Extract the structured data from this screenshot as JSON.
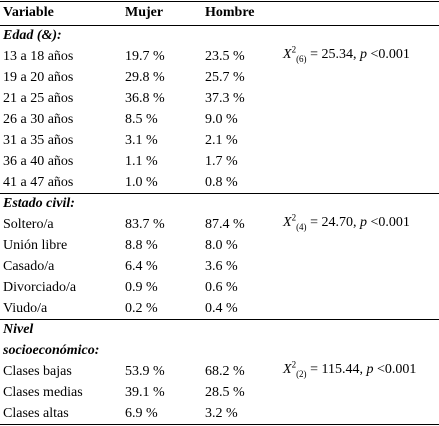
{
  "table": {
    "header": [
      "Variable",
      "Mujer",
      "Hombre"
    ],
    "sections": [
      {
        "title_lines": [
          "Edad (&):"
        ],
        "stat": {
          "symbol": "X",
          "sup": "2",
          "sub": "(6)",
          "value": "= 25.34,",
          "p": "p",
          "threshold": "<0.001"
        },
        "rows": [
          [
            "13 a 18 años",
            "19.7 %",
            "23.5 %"
          ],
          [
            "19 a 20 años",
            "29.8 %",
            "25.7 %"
          ],
          [
            "21 a 25 años",
            "36.8 %",
            "37.3 %"
          ],
          [
            "26 a 30 años",
            "8.5 %",
            "9.0 %"
          ],
          [
            "31 a 35 años",
            "3.1 %",
            "2.1 %"
          ],
          [
            "36 a 40 años",
            "1.1 %",
            "1.7 %"
          ],
          [
            "41 a 47 años",
            "1.0 %",
            "0.8 %"
          ]
        ]
      },
      {
        "title_lines": [
          "Estado civil:"
        ],
        "stat": {
          "symbol": "X",
          "sup": "2",
          "sub": "(4)",
          "value": "= 24.70,",
          "p": "p",
          "threshold": "<0.001"
        },
        "rows": [
          [
            "Soltero/a",
            "83.7 %",
            "87.4 %"
          ],
          [
            "Unión libre",
            "8.8 %",
            "8.0 %"
          ],
          [
            "Casado/a",
            "6.4 %",
            "3.6 %"
          ],
          [
            "Divorciado/a",
            "0.9 %",
            "0.6 %"
          ],
          [
            "Viudo/a",
            "0.2 %",
            "0.4 %"
          ]
        ]
      },
      {
        "title_lines": [
          "Nivel",
          "socioeconómico:"
        ],
        "stat": {
          "symbol": "X",
          "sup": "2",
          "sub": "(2)",
          "value": "= 115.44,",
          "p": "p",
          "threshold": "<0.001"
        },
        "rows": [
          [
            "Clases bajas",
            "53.9 %",
            "68.2 %"
          ],
          [
            "Clases medias",
            "39.1 %",
            "28.5 %"
          ],
          [
            "Clases altas",
            "6.9 %",
            "3.2 %"
          ]
        ]
      }
    ]
  }
}
